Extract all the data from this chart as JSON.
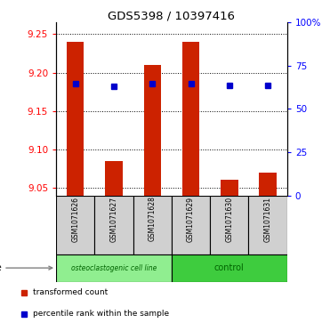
{
  "title": "GDS5398 / 10397416",
  "samples": [
    "GSM1071626",
    "GSM1071627",
    "GSM1071628",
    "GSM1071629",
    "GSM1071630",
    "GSM1071631"
  ],
  "red_values": [
    9.24,
    9.085,
    9.21,
    9.24,
    9.06,
    9.07
  ],
  "blue_values": [
    9.185,
    9.182,
    9.185,
    9.185,
    9.183,
    9.183
  ],
  "ylim_left": [
    9.04,
    9.265
  ],
  "yticks_left": [
    9.05,
    9.1,
    9.15,
    9.2,
    9.25
  ],
  "yticks_right_vals": [
    0,
    25,
    50,
    75,
    100
  ],
  "yticks_right_labels": [
    "0",
    "25",
    "50",
    "75",
    "100%"
  ],
  "red_color": "#cc2200",
  "blue_color": "#0000cc",
  "bar_bottom": 9.04,
  "group_labels": [
    "osteoclastogenic cell line",
    "control"
  ],
  "group_colors": [
    "#90EE90",
    "#3ecc3e"
  ],
  "sample_box_color": "#d0d0d0",
  "cell_line_label": "cell line",
  "legend_red": "transformed count",
  "legend_blue": "percentile rank within the sample"
}
